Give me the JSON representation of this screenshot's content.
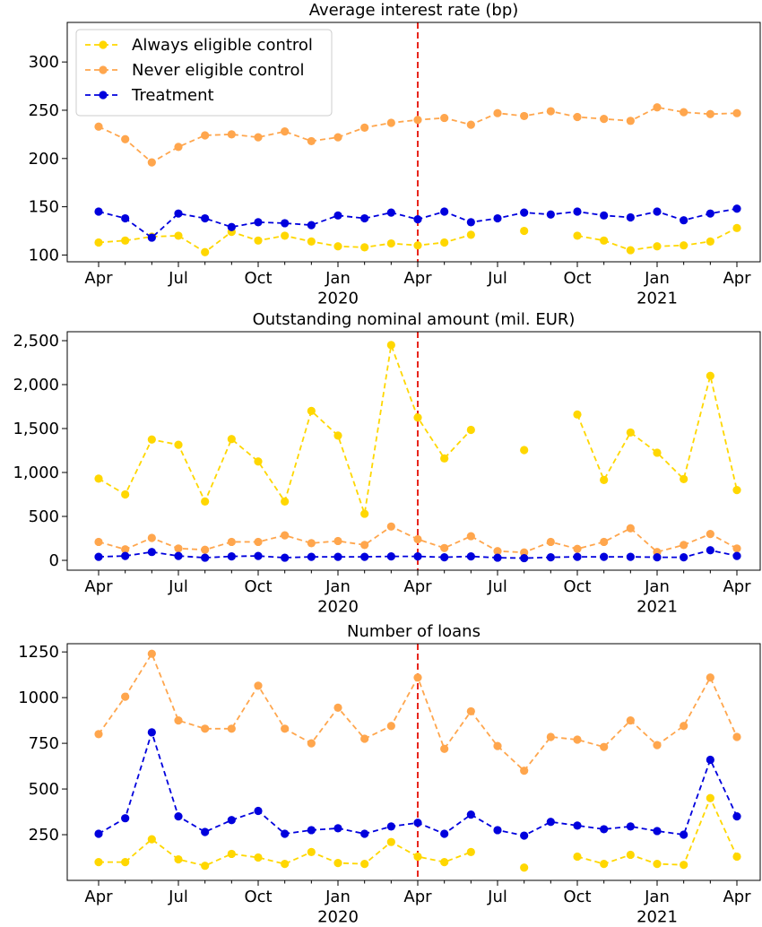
{
  "chart_data": [
    {
      "type": "line",
      "title": "Average interest rate (bp)",
      "categories": [
        "Apr",
        null,
        null,
        "Jul",
        null,
        null,
        "Oct",
        null,
        null,
        "Jan\n2020",
        null,
        null,
        "Apr",
        null,
        null,
        "Jul",
        null,
        null,
        "Oct",
        null,
        null,
        "Jan\n2021",
        null,
        null,
        "Apr"
      ],
      "series": [
        {
          "name": "Always eligible control",
          "color": "#ffd700",
          "values": [
            113,
            115,
            119,
            120,
            103,
            124,
            115,
            120,
            114,
            109,
            108,
            112,
            110,
            113,
            121,
            null,
            125,
            null,
            120,
            115,
            105,
            109,
            110,
            114,
            128
          ]
        },
        {
          "name": "Never eligible control",
          "color": "#ffa64d",
          "values": [
            233,
            220,
            196,
            212,
            224,
            225,
            222,
            228,
            218,
            222,
            232,
            237,
            240,
            242,
            235,
            247,
            244,
            249,
            243,
            241,
            239,
            253,
            248,
            246,
            247
          ]
        },
        {
          "name": "Treatment",
          "color": "#0000dd",
          "values": [
            145,
            138,
            118,
            143,
            138,
            129,
            134,
            133,
            131,
            141,
            138,
            144,
            137,
            145,
            134,
            138,
            144,
            142,
            145,
            141,
            139,
            145,
            136,
            143,
            148
          ]
        }
      ],
      "ylim": [
        93,
        341
      ],
      "yticks": [
        100,
        150,
        200,
        250,
        300
      ],
      "legend": "upper left",
      "vline": 12
    },
    {
      "type": "line",
      "title": "Outstanding nominal amount (mil. EUR)",
      "categories": [
        "Apr",
        null,
        null,
        "Jul",
        null,
        null,
        "Oct",
        null,
        null,
        "Jan\n2020",
        null,
        null,
        "Apr",
        null,
        null,
        "Jul",
        null,
        null,
        "Oct",
        null,
        null,
        "Jan\n2021",
        null,
        null,
        "Apr"
      ],
      "series": [
        {
          "color": "#ffd700",
          "values": [
            930,
            750,
            1375,
            1315,
            670,
            1380,
            1125,
            670,
            1700,
            1420,
            530,
            2450,
            1625,
            1160,
            1485,
            null,
            1255,
            null,
            1660,
            915,
            1455,
            1225,
            925,
            2100,
            800
          ]
        },
        {
          "color": "#ffa64d",
          "values": [
            210,
            125,
            255,
            135,
            120,
            210,
            210,
            285,
            195,
            220,
            175,
            385,
            240,
            140,
            275,
            105,
            90,
            210,
            130,
            210,
            365,
            95,
            175,
            300,
            135
          ]
        },
        {
          "color": "#0000dd",
          "values": [
            40,
            50,
            95,
            50,
            30,
            45,
            50,
            30,
            40,
            40,
            40,
            45,
            45,
            35,
            45,
            30,
            25,
            35,
            40,
            40,
            40,
            35,
            35,
            115,
            50
          ]
        }
      ],
      "ylim": [
        -112,
        2602
      ],
      "yticks": [
        0,
        500,
        {
          "value": 1000,
          "label": "1,000"
        },
        {
          "value": 1500,
          "label": "1,500"
        },
        {
          "value": 2000,
          "label": "2,000"
        },
        {
          "value": 2500,
          "label": "2,500"
        }
      ],
      "vline": 12
    },
    {
      "type": "line",
      "title": "Number of loans",
      "categories": [
        "Apr",
        null,
        null,
        "Jul",
        null,
        null,
        "Oct",
        null,
        null,
        "Jan\n2020",
        null,
        null,
        "Apr",
        null,
        null,
        "Jul",
        null,
        null,
        "Oct",
        null,
        null,
        "Jan\n2021",
        null,
        null,
        "Apr"
      ],
      "series": [
        {
          "color": "#ffd700",
          "values": [
            100,
            100,
            225,
            115,
            80,
            145,
            125,
            90,
            155,
            95,
            90,
            210,
            130,
            100,
            155,
            null,
            70,
            null,
            130,
            90,
            140,
            90,
            85,
            450,
            130
          ]
        },
        {
          "color": "#ffa64d",
          "values": [
            800,
            1005,
            1240,
            875,
            830,
            830,
            1065,
            830,
            750,
            945,
            775,
            845,
            1110,
            720,
            925,
            735,
            600,
            785,
            770,
            730,
            875,
            740,
            845,
            1110,
            785
          ]
        },
        {
          "color": "#0000dd",
          "values": [
            255,
            340,
            810,
            350,
            265,
            330,
            380,
            255,
            275,
            285,
            255,
            295,
            315,
            255,
            360,
            275,
            245,
            320,
            300,
            280,
            295,
            270,
            250,
            660,
            350
          ]
        }
      ],
      "ylim": [
        0,
        1295
      ],
      "yticks": [
        250,
        500,
        750,
        1000,
        1250
      ],
      "vline": 12
    }
  ]
}
